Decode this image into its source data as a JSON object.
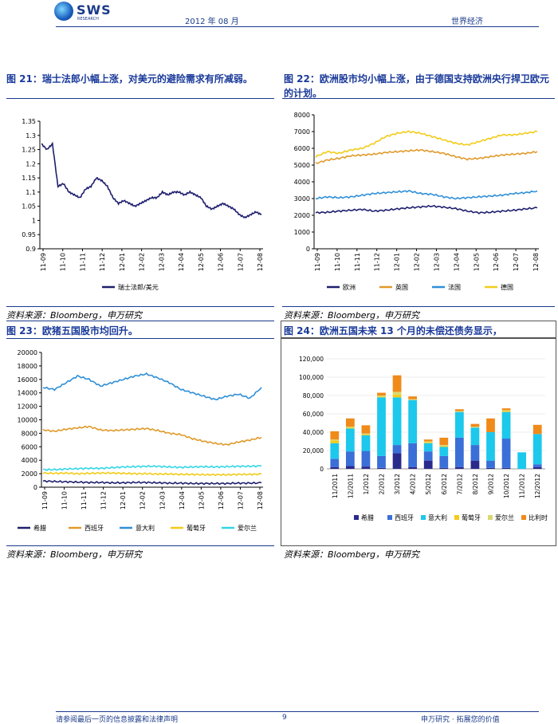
{
  "header": {
    "logo_text": "SWS",
    "logo_sub": "RESEARCH",
    "date": "2012 年 08 月",
    "section": "世界经济"
  },
  "fig21": {
    "title": "图 21：瑞士法郎小幅上涨，对美元的避险需求有所减弱。",
    "source": "资料来源：Bloomberg，申万研究",
    "chart_data": {
      "type": "line",
      "ylim": [
        0.9,
        1.35
      ],
      "yticks": [
        "1.35",
        "1.3",
        "1.25",
        "1.2",
        "1.15",
        "1.1",
        "1.05",
        "1",
        "0.95",
        "0.9"
      ],
      "xticks": [
        "11-09",
        "11-10",
        "11-11",
        "11-12",
        "12-01",
        "12-02",
        "12-03",
        "12-04",
        "12-05",
        "12-06",
        "12-07",
        "12-08"
      ],
      "series": [
        {
          "name": "瑞士法郎/美元",
          "color": "#1f1f6e",
          "values": [
            1.27,
            1.25,
            1.27,
            1.12,
            1.13,
            1.1,
            1.09,
            1.08,
            1.11,
            1.12,
            1.15,
            1.14,
            1.12,
            1.08,
            1.06,
            1.07,
            1.06,
            1.05,
            1.06,
            1.07,
            1.08,
            1.08,
            1.1,
            1.09,
            1.1,
            1.1,
            1.09,
            1.1,
            1.09,
            1.08,
            1.05,
            1.04,
            1.05,
            1.06,
            1.05,
            1.04,
            1.02,
            1.01,
            1.02,
            1.03,
            1.02
          ]
        }
      ]
    }
  },
  "fig22": {
    "title": "图 22：欧洲股市均小幅上涨，由于德国支持欧洲央行捍卫欧元的计划。",
    "source": "资料来源：Bloomberg，申万研究",
    "chart_data": {
      "type": "line",
      "ylim": [
        0,
        8000
      ],
      "yticks": [
        "8000",
        "7000",
        "6000",
        "5000",
        "4000",
        "3000",
        "2000",
        "1000",
        "0"
      ],
      "xticks": [
        "11-09",
        "11-10",
        "11-11",
        "11-12",
        "12-01",
        "12-02",
        "12-03",
        "12-04",
        "12-05",
        "12-06",
        "12-07",
        "12-08"
      ],
      "series": [
        {
          "name": "欧洲",
          "color": "#1f1f6e",
          "values": [
            2150,
            2180,
            2250,
            2300,
            2350,
            2250,
            2300,
            2380,
            2450,
            2500,
            2550,
            2480,
            2400,
            2250,
            2150,
            2180,
            2250,
            2300,
            2380,
            2450
          ]
        },
        {
          "name": "英国",
          "color": "#e09a2a",
          "values": [
            5100,
            5300,
            5400,
            5550,
            5600,
            5650,
            5750,
            5800,
            5850,
            5900,
            5800,
            5700,
            5500,
            5350,
            5400,
            5500,
            5600,
            5650,
            5700,
            5800
          ]
        },
        {
          "name": "法国",
          "color": "#2f8fd8",
          "values": [
            3000,
            3100,
            3050,
            3100,
            3200,
            3300,
            3350,
            3400,
            3450,
            3300,
            3250,
            3100,
            3000,
            3050,
            3100,
            3150,
            3200,
            3300,
            3350,
            3450
          ]
        },
        {
          "name": "德国",
          "color": "#f2cc1a",
          "values": [
            5500,
            5800,
            5700,
            5900,
            6000,
            6300,
            6700,
            6900,
            7000,
            6900,
            6700,
            6500,
            6300,
            6200,
            6400,
            6600,
            6800,
            6800,
            6900,
            7000
          ]
        }
      ]
    }
  },
  "fig23": {
    "title": "图 23：欧猪五国股市均回升。",
    "source": "资料来源：Bloomberg，申万研究",
    "chart_data": {
      "type": "line",
      "ylim": [
        0,
        20000
      ],
      "yticks": [
        "20000",
        "18000",
        "16000",
        "14000",
        "12000",
        "10000",
        "8000",
        "6000",
        "4000",
        "2000",
        "0"
      ],
      "xticks": [
        "11-09",
        "11-10",
        "11-11",
        "11-12",
        "12-01",
        "12-02",
        "12-03",
        "12-04",
        "12-05",
        "12-06",
        "12-07",
        "12-08"
      ],
      "series": [
        {
          "name": "希腊",
          "color": "#1f1f6e",
          "values": [
            900,
            850,
            800,
            750,
            700,
            700,
            650,
            650,
            700,
            700,
            650,
            600,
            600,
            550,
            550,
            550,
            550,
            600,
            600,
            650
          ]
        },
        {
          "name": "西班牙",
          "color": "#e09a2a",
          "values": [
            8500,
            8300,
            8600,
            8800,
            9000,
            8500,
            8400,
            8500,
            8600,
            8700,
            8400,
            8000,
            7800,
            7200,
            6800,
            6500,
            6300,
            6700,
            7000,
            7400
          ]
        },
        {
          "name": "意大利",
          "color": "#2f8fd8",
          "values": [
            14800,
            14500,
            15500,
            16500,
            16000,
            15000,
            15500,
            16000,
            16500,
            16800,
            16200,
            15500,
            14500,
            14000,
            13500,
            13000,
            13500,
            13800,
            13200,
            14800
          ]
        },
        {
          "name": "葡萄牙",
          "color": "#f2cc1a",
          "values": [
            2100,
            2050,
            2100,
            2000,
            2050,
            2100,
            2100,
            2050,
            2000,
            2000,
            1950,
            1950,
            1900,
            1900,
            1850,
            1850,
            1850,
            1900,
            1900,
            1950
          ]
        },
        {
          "name": "爱尔兰",
          "color": "#33d6e6",
          "values": [
            2600,
            2600,
            2700,
            2750,
            2800,
            2800,
            2900,
            3000,
            3050,
            3100,
            3100,
            3000,
            2950,
            3000,
            3050,
            3000,
            3050,
            3100,
            3100,
            3150
          ]
        }
      ]
    }
  },
  "fig24": {
    "title": "图 24：欧洲五国未来 13 个月的未偿还债务显示，",
    "source": "资料来源：Bloomberg，申万研究",
    "chart_data": {
      "type": "bar",
      "stacked": true,
      "ylim": [
        0,
        120000
      ],
      "yticks": [
        "120,000",
        "100,000",
        "80,000",
        "60,000",
        "40,000",
        "20,000",
        "0"
      ],
      "categories": [
        "11/2011",
        "12/2011",
        "1/2012",
        "2/2012",
        "3/2012",
        "4/2012",
        "5/2012",
        "6/2012",
        "7/2012",
        "8/2012",
        "9/2012",
        "10/2012",
        "11/2012",
        "12/2012"
      ],
      "series": [
        {
          "name": "希腊",
          "color": "#2a2a8c",
          "values": [
            2000,
            3000,
            2500,
            1000,
            17000,
            2000,
            9000,
            1000,
            2000,
            9000,
            1000,
            1000,
            0,
            2000
          ]
        },
        {
          "name": "西班牙",
          "color": "#3a6fd8",
          "values": [
            9000,
            16000,
            17000,
            13000,
            9000,
            26000,
            10000,
            13000,
            32000,
            17000,
            8000,
            32000,
            0,
            3000
          ]
        },
        {
          "name": "意大利",
          "color": "#1cc8ec",
          "values": [
            17000,
            25000,
            17000,
            64000,
            52000,
            47000,
            9000,
            10000,
            28000,
            19000,
            31000,
            29000,
            18000,
            33000
          ]
        },
        {
          "name": "葡萄牙",
          "color": "#f2cc1a",
          "values": [
            3000,
            1000,
            1000,
            1000,
            3000,
            0,
            1000,
            1000,
            0,
            0,
            0,
            1000,
            0,
            0
          ]
        },
        {
          "name": "爱尔兰",
          "color": "#d8d870",
          "values": [
            1000,
            1000,
            1000,
            1000,
            3000,
            1000,
            1000,
            1000,
            1000,
            1000,
            0,
            1000,
            0,
            0
          ]
        },
        {
          "name": "比利时",
          "color": "#f08a1a",
          "values": [
            9000,
            9000,
            9000,
            3000,
            18000,
            3000,
            2000,
            8000,
            2000,
            3000,
            15000,
            2000,
            0,
            10000
          ]
        }
      ]
    }
  },
  "footer": {
    "disclaimer": "请参阅最后一页的信息披露和法律声明",
    "page": "9",
    "brand": "申万研究 · 拓展您的价值"
  }
}
